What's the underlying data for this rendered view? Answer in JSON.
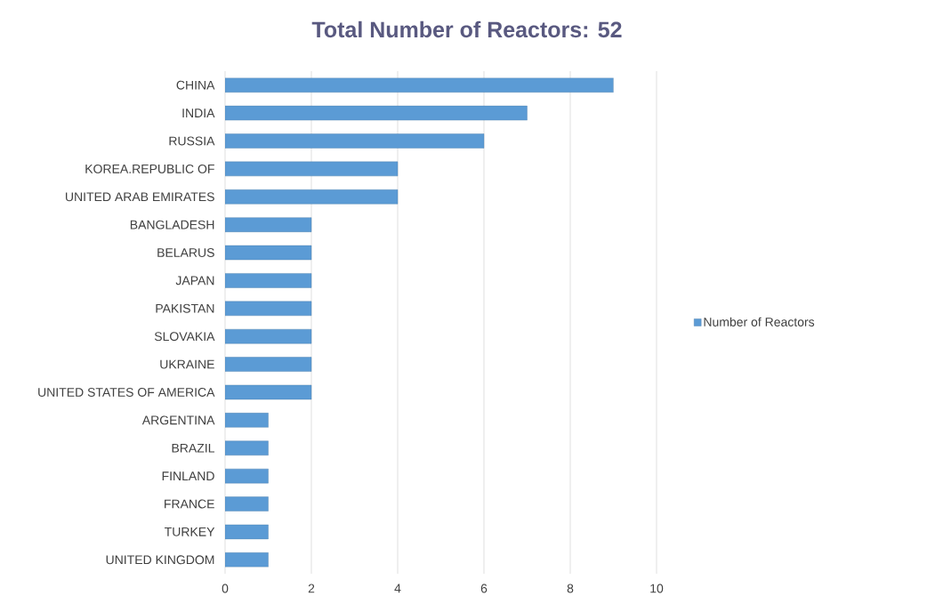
{
  "chart_data": {
    "type": "bar",
    "orientation": "horizontal",
    "title": "Total Number of Reactors: 52",
    "categories": [
      "CHINA",
      "INDIA",
      "RUSSIA",
      "KOREA.REPUBLIC OF",
      "UNITED ARAB EMIRATES",
      "BANGLADESH",
      "BELARUS",
      "JAPAN",
      "PAKISTAN",
      "SLOVAKIA",
      "UKRAINE",
      "UNITED STATES OF AMERICA",
      "ARGENTINA",
      "BRAZIL",
      "FINLAND",
      "FRANCE",
      "TURKEY",
      "UNITED KINGDOM"
    ],
    "series": [
      {
        "name": "Number of Reactors",
        "color": "#5b9bd5",
        "values": [
          9,
          7,
          6,
          4,
          4,
          2,
          2,
          2,
          2,
          2,
          2,
          2,
          1,
          1,
          1,
          1,
          1,
          1
        ]
      }
    ],
    "xlim": [
      0,
      10
    ],
    "xticks": [
      0,
      2,
      4,
      6,
      8,
      10
    ],
    "grid": "x",
    "legend": "right"
  }
}
